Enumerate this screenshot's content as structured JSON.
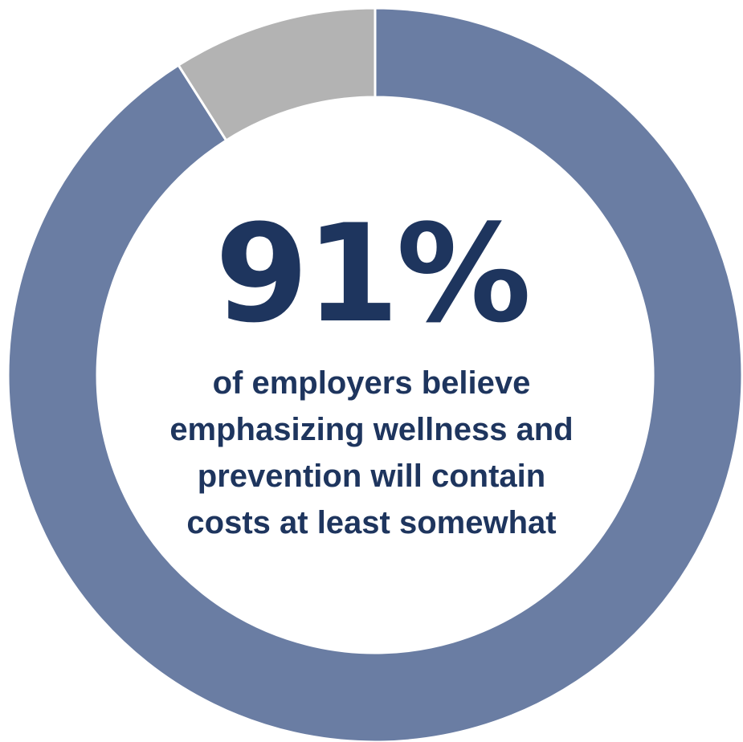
{
  "chart_data": {
    "type": "pie",
    "variant": "donut",
    "series": [
      {
        "value": 91,
        "color": "#6a7da3"
      },
      {
        "value": 9,
        "color": "#b3b3b3"
      }
    ],
    "center_value": "91%",
    "caption_lines": [
      "of employers believe",
      "emphasizing wellness and",
      "prevention will contain",
      "costs at least somewhat"
    ]
  },
  "colors": {
    "primary_segment": "#6a7da3",
    "secondary_segment": "#b3b3b3",
    "text": "#1e355e",
    "separator": "#ffffff"
  }
}
